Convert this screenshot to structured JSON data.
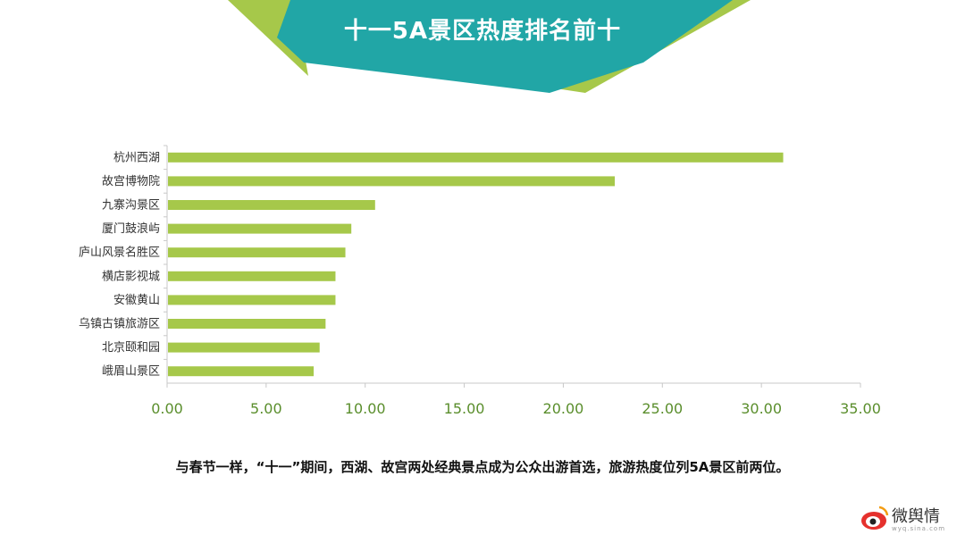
{
  "banner": {
    "title": "十一5A景区热度排名前十"
  },
  "colors": {
    "bar": "#a6c84a",
    "banner_teal": "#21a6a6",
    "banner_green": "#a6c84a",
    "axis": "#c8c8c8",
    "tick_text": "#5a8e2c"
  },
  "chart_data": {
    "type": "bar",
    "orientation": "horizontal",
    "categories": [
      "杭州西湖",
      "故宫博物院",
      "九寨沟景区",
      "厦门鼓浪屿",
      "庐山风景名胜区",
      "横店影视城",
      "安徽黄山",
      "乌镇古镇旅游区",
      "北京颐和园",
      "峨眉山景区"
    ],
    "values": [
      31.1,
      22.6,
      10.5,
      9.3,
      9.0,
      8.5,
      8.5,
      8.0,
      7.7,
      7.4
    ],
    "xlim": [
      0,
      35
    ],
    "xticks": [
      "0.00",
      "5.00",
      "10.00",
      "15.00",
      "20.00",
      "25.00",
      "30.00",
      "35.00"
    ],
    "grid": false
  },
  "caption": "与春节一样，“十一”期间，西湖、故宫两处经典景点成为公众出游首选，旅游热度位列5A景区前两位。",
  "logo": {
    "text": "微舆情",
    "url": "wyq.sina.com",
    "icon": "weibo-eye-icon"
  }
}
